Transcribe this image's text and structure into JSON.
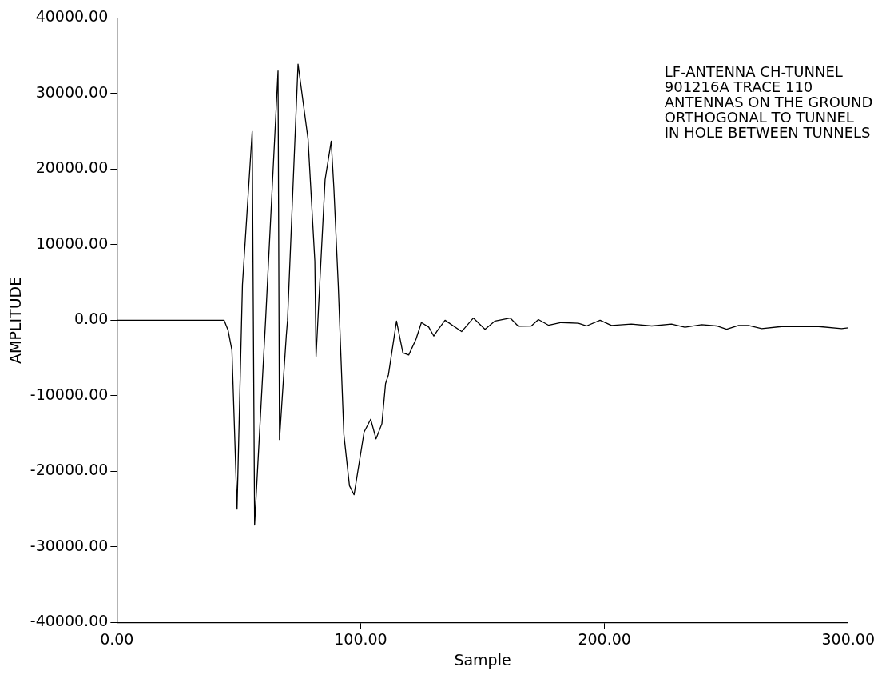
{
  "chart_data": {
    "type": "line",
    "xlabel": "Sample",
    "ylabel": "AMPLITUDE",
    "annotations": [
      "LF-ANTENNA CH-TUNNEL",
      "901216A TRACE 110",
      "ANTENNAS ON THE GROUND",
      "ORTHOGONAL TO TUNNEL",
      "IN HOLE BETWEEN TUNNELS"
    ],
    "x": [
      0,
      10,
      20,
      30,
      40,
      44,
      45.6,
      47.2,
      48.9,
      49.3,
      51.5,
      55.5,
      56.5,
      61,
      66.1,
      66.7,
      69.5,
      70,
      74.3,
      78.4,
      81.2,
      81.7,
      83,
      85.4,
      87.9,
      89,
      90.8,
      93.1,
      95.4,
      97.3,
      101.4,
      104.1,
      106.3,
      108.7,
      110.2,
      111.4,
      114.7,
      117.3,
      119.7,
      122.7,
      124.9,
      127.9,
      130,
      131.4,
      134.6,
      141.4,
      146.2,
      151,
      155.1,
      161.3,
      164.7,
      170,
      172.9,
      177,
      182.3,
      189.3,
      192.6,
      198.2,
      202.9,
      211,
      219.4,
      227.5,
      233,
      239.9,
      246,
      250.1,
      255,
      259.1,
      264.5,
      272.7,
      287.9,
      297.3,
      300
    ],
    "series": [
      {
        "color": "#000000",
        "values": [
          0,
          0,
          0,
          0,
          0,
          0,
          -1300,
          -4000,
          -21000,
          -25000,
          4700,
          25000,
          -27100,
          0,
          33000,
          -15800,
          -2000,
          0,
          33900,
          24000,
          7800,
          -4800,
          3500,
          18600,
          23700,
          17500,
          4700,
          -15100,
          -21900,
          -23100,
          -14800,
          -13100,
          -15700,
          -13700,
          -8400,
          -7200,
          -100,
          -4300,
          -4600,
          -2500,
          -300,
          -900,
          -2100,
          -1400,
          0,
          -1500,
          300,
          -1200,
          -100,
          300,
          -800,
          -750,
          100,
          -650,
          -300,
          -400,
          -750,
          0,
          -680,
          -500,
          -750,
          -500,
          -930,
          -570,
          -750,
          -1200,
          -680,
          -680,
          -1100,
          -830,
          -830,
          -1100,
          -1000
        ]
      }
    ],
    "xlim": [
      0,
      300
    ],
    "xticks": [
      {
        "value": 0,
        "label": "0.00"
      },
      {
        "value": 100,
        "label": "100.00"
      },
      {
        "value": 200,
        "label": "200.00"
      },
      {
        "value": 300,
        "label": "300.00"
      }
    ],
    "ylim": [
      -40000,
      40000
    ],
    "yticks": [
      {
        "value": -40000,
        "label": "-40000.00"
      },
      {
        "value": -30000,
        "label": "-30000.00"
      },
      {
        "value": -20000,
        "label": "-20000.00"
      },
      {
        "value": -10000,
        "label": "-10000.00"
      },
      {
        "value": 0,
        "label": "0.00"
      },
      {
        "value": 10000,
        "label": "10000.00"
      },
      {
        "value": 20000,
        "label": "20000.00"
      },
      {
        "value": 30000,
        "label": "30000.00"
      },
      {
        "value": 40000,
        "label": "40000.00"
      }
    ],
    "grid": false,
    "legend": false,
    "marker": "none",
    "line_style": "solid"
  }
}
